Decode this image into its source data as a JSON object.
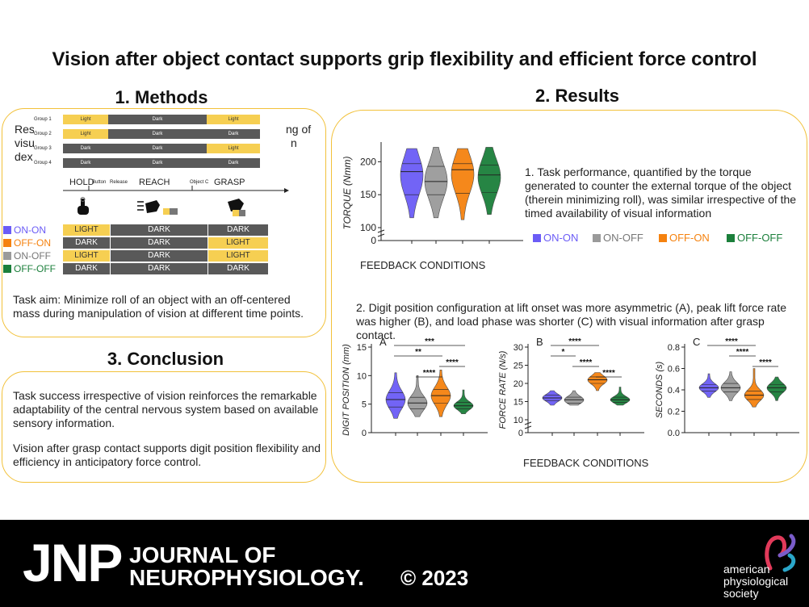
{
  "title": "Vision after object contact supports grip flexibility and efficient force control",
  "methods": {
    "heading": "1. Methods",
    "intro_partial": [
      "Res",
      "visu",
      "dex",
      "ng of",
      "n"
    ],
    "groups": [
      {
        "label": "Group 1",
        "hold": "Light",
        "reach": "Dark",
        "grasp": "Light"
      },
      {
        "label": "Group 2",
        "hold": "Light",
        "reach": "Dark",
        "grasp": "Dark"
      },
      {
        "label": "Group 3",
        "hold": "Dark",
        "reach": "Dark",
        "grasp": "Light"
      },
      {
        "label": "Group 4",
        "hold": "Dark",
        "reach": "Dark",
        "grasp": "Dark"
      }
    ],
    "phase_labels": {
      "hold": "HOLD",
      "button": "Button",
      "release": "Release",
      "reach": "REACH",
      "object_c": "Object C",
      "grasp": "GRASP"
    },
    "conditions": [
      {
        "name": "ON-ON",
        "color": "#6b5cf6",
        "hold": "LIGHT",
        "reach": "DARK",
        "grasp": "DARK"
      },
      {
        "name": "OFF-ON",
        "color": "#f5820f",
        "hold": "DARK",
        "reach": "DARK",
        "grasp": "LIGHT"
      },
      {
        "name": "ON-OFF",
        "color": "#9a9a9a",
        "hold": "LIGHT",
        "reach": "DARK",
        "grasp": "LIGHT"
      },
      {
        "name": "OFF-OFF",
        "color": "#1b7f3b",
        "hold": "DARK",
        "reach": "DARK",
        "grasp": "DARK"
      }
    ],
    "task_aim": "Task aim: Minimize roll of an object with an off-centered mass during manipulation of vision at different time points."
  },
  "conclusion": {
    "heading": "3. Conclusion",
    "p1": "Task success irrespective of vision reinforces the remarkable adaptability of the central nervous system based on available sensory information.",
    "p2": "Vision after grasp contact supports digit position flexibility and efficiency in anticipatory force control."
  },
  "results": {
    "heading": "2. Results",
    "finding1": "1. Task performance, quantified by the torque generated to counter the external torque of the object (therein minimizing roll), was similar irrespective of the timed availability of visual information",
    "finding2": "2. Digit position configuration at lift onset was more asymmetric (A), peak lift force rate was higher (B), and load phase was shorter (C) with visual information after grasp contact.",
    "legend": [
      {
        "name": "ON-ON",
        "color": "#6b5cf6"
      },
      {
        "name": "ON-OFF",
        "color": "#9a9a9a"
      },
      {
        "name": "OFF-ON",
        "color": "#f5820f"
      },
      {
        "name": "OFF-OFF",
        "color": "#1b7f3b"
      }
    ],
    "xlabel_feedback": "FEEDBACK CONDITIONS"
  },
  "chart_data": [
    {
      "type": "violin",
      "title": "",
      "ylabel": "TORQUE (Nmm)",
      "xlabel": "FEEDBACK CONDITIONS",
      "yticks": [
        0,
        100,
        150,
        200
      ],
      "ylim": [
        100,
        225
      ],
      "axis_break": true,
      "categories": [
        "ON-ON",
        "ON-OFF",
        "OFF-ON",
        "OFF-OFF"
      ],
      "colors": [
        "#6b5cf6",
        "#9a9a9a",
        "#f5820f",
        "#1b7f3b"
      ],
      "medians": [
        185,
        170,
        188,
        180
      ],
      "q1": [
        150,
        150,
        152,
        153
      ],
      "q3": [
        197,
        193,
        197,
        195
      ],
      "min": [
        115,
        115,
        112,
        120
      ],
      "max": [
        220,
        222,
        220,
        222
      ],
      "significance": []
    },
    {
      "type": "violin",
      "title": "A",
      "ylabel": "DIGIT POSITION (mm)",
      "yticks": [
        0,
        5,
        10,
        15
      ],
      "ylim": [
        0,
        15
      ],
      "categories": [
        "ON-ON",
        "ON-OFF",
        "OFF-ON",
        "OFF-OFF"
      ],
      "colors": [
        "#6b5cf6",
        "#9a9a9a",
        "#f5820f",
        "#1b7f3b"
      ],
      "medians": [
        5.8,
        5.2,
        6.5,
        4.7
      ],
      "q1": [
        4.5,
        4.2,
        5.2,
        4.2
      ],
      "q3": [
        7.0,
        6.2,
        7.6,
        5.3
      ],
      "min": [
        2.5,
        2.8,
        2.8,
        3.3
      ],
      "max": [
        10.5,
        10.0,
        11.0,
        7.5
      ],
      "significance": [
        {
          "from": 0,
          "to": 3,
          "label": "***"
        },
        {
          "from": 0,
          "to": 2,
          "label": "**"
        },
        {
          "from": 2,
          "to": 3,
          "label": "****"
        },
        {
          "from": 1,
          "to": 2,
          "label": "****"
        }
      ]
    },
    {
      "type": "violin",
      "title": "B",
      "ylabel": "FORCE RATE (N/s)",
      "yticks": [
        0,
        10,
        15,
        20,
        25,
        30
      ],
      "ylim": [
        10,
        30
      ],
      "axis_break": true,
      "categories": [
        "ON-ON",
        "ON-OFF",
        "OFF-ON",
        "OFF-OFF"
      ],
      "colors": [
        "#6b5cf6",
        "#9a9a9a",
        "#f5820f",
        "#1b7f3b"
      ],
      "medians": [
        16.0,
        15.5,
        21.0,
        15.5
      ],
      "q1": [
        15.3,
        14.6,
        20.0,
        14.8
      ],
      "q3": [
        16.8,
        16.2,
        21.8,
        16.2
      ],
      "min": [
        14.0,
        14.0,
        18.0,
        14.0
      ],
      "max": [
        18.0,
        18.0,
        23.0,
        19.0
      ],
      "significance": [
        {
          "from": 0,
          "to": 2,
          "label": "****"
        },
        {
          "from": 0,
          "to": 1,
          "label": "*"
        },
        {
          "from": 1,
          "to": 2,
          "label": "****"
        },
        {
          "from": 2,
          "to": 3,
          "label": "****"
        }
      ]
    },
    {
      "type": "violin",
      "title": "C",
      "ylabel": "SECONDS (s)",
      "yticks": [
        0.0,
        0.2,
        0.4,
        0.6,
        0.8
      ],
      "ylim": [
        0,
        0.8
      ],
      "categories": [
        "ON-ON",
        "ON-OFF",
        "OFF-ON",
        "OFF-OFF"
      ],
      "colors": [
        "#6b5cf6",
        "#9a9a9a",
        "#f5820f",
        "#1b7f3b"
      ],
      "medians": [
        0.42,
        0.42,
        0.35,
        0.42
      ],
      "q1": [
        0.39,
        0.38,
        0.31,
        0.38
      ],
      "q3": [
        0.45,
        0.46,
        0.39,
        0.45
      ],
      "min": [
        0.33,
        0.3,
        0.24,
        0.3
      ],
      "max": [
        0.55,
        0.57,
        0.6,
        0.52
      ],
      "significance": [
        {
          "from": 0,
          "to": 2,
          "label": "****"
        },
        {
          "from": 1,
          "to": 2,
          "label": "****"
        },
        {
          "from": 2,
          "to": 3,
          "label": "****"
        }
      ]
    }
  ],
  "footer": {
    "jnp": "JNP",
    "journal_line1": "JOURNAL OF",
    "journal_line2": "NEUROPHYSIOLOGY.",
    "copyright": "© 2023",
    "society_line1": "american",
    "society_line2": "physiological",
    "society_line3": "society"
  }
}
